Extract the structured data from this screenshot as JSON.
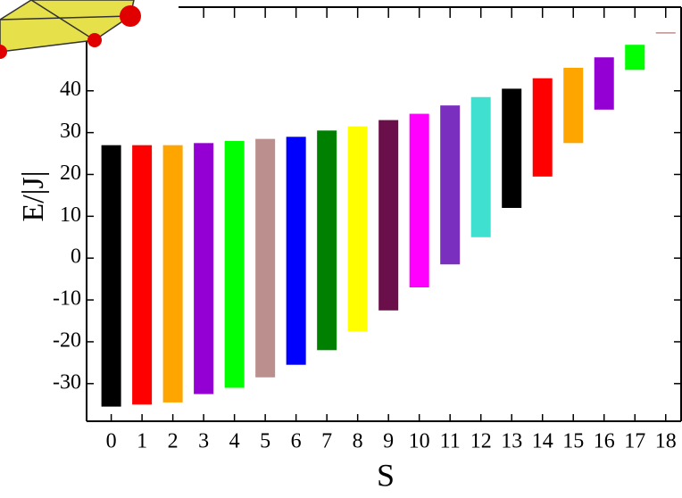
{
  "chart_data": {
    "type": "bar",
    "x_label": "S",
    "y_label": "E/|J|",
    "x": [
      0,
      1,
      2,
      3,
      4,
      5,
      6,
      7,
      8,
      9,
      10,
      11,
      12,
      13,
      14,
      15,
      16,
      17,
      18
    ],
    "low": [
      -35.5,
      -35,
      -34.5,
      -32.5,
      -31,
      -28.5,
      -25.5,
      -22,
      -17.5,
      -12.5,
      -7,
      -1.5,
      5,
      12,
      19.5,
      27.5,
      35.5,
      45,
      54
    ],
    "high": [
      27,
      27,
      27,
      27.5,
      28,
      28.5,
      29,
      30.5,
      31.5,
      33,
      34.5,
      36.5,
      38.5,
      40.5,
      43,
      45.5,
      48,
      51,
      54
    ],
    "colors": [
      "#000000",
      "#ff0000",
      "#ffa500",
      "#9400d3",
      "#00ff00",
      "#bc8f8f",
      "#0000ff",
      "#008000",
      "#ffff00",
      "#6b0f4b",
      "#ff00ff",
      "#7b2fbe",
      "#40e0d0",
      "#000000",
      "#ff0000",
      "#ffa500",
      "#9400d3",
      "#00ff00",
      "#bc8f8f"
    ],
    "xlim": [
      -0.8,
      18.5
    ],
    "xticks": [
      0,
      1,
      2,
      3,
      4,
      5,
      6,
      7,
      8,
      9,
      10,
      11,
      12,
      13,
      14,
      15,
      16,
      17,
      18
    ],
    "ylim": [
      -39,
      60
    ],
    "yticks": [
      -30,
      -20,
      -10,
      0,
      10,
      20,
      30,
      40
    ]
  }
}
